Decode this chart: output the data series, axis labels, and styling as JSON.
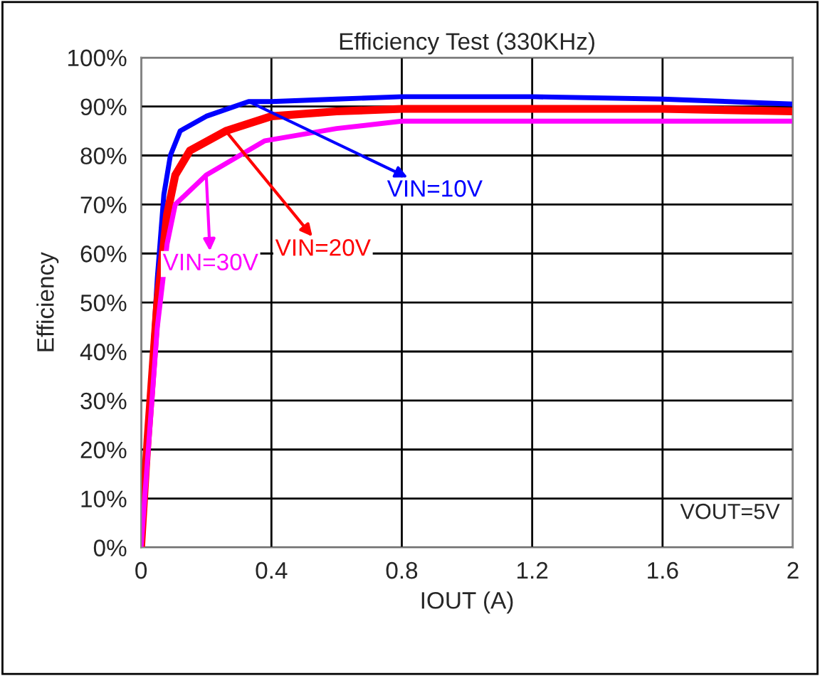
{
  "chart_data": {
    "type": "line",
    "title": "Efficiency Test (330KHz)",
    "xlabel": "IOUT (A)",
    "ylabel": "Efficiency",
    "xlim": [
      0,
      2
    ],
    "xticks": [
      0,
      0.4,
      0.8,
      1.2,
      1.6,
      2
    ],
    "ylim": [
      0,
      100
    ],
    "yticks": [
      {
        "value": 0,
        "label": "0%"
      },
      {
        "value": 10,
        "label": "10%"
      },
      {
        "value": 20,
        "label": "20%"
      },
      {
        "value": 30,
        "label": "30%"
      },
      {
        "value": 40,
        "label": "40%"
      },
      {
        "value": 50,
        "label": "50%"
      },
      {
        "value": 60,
        "label": "60%"
      },
      {
        "value": 70,
        "label": "70%"
      },
      {
        "value": 80,
        "label": "80%"
      },
      {
        "value": 90,
        "label": "90%"
      },
      {
        "value": 100,
        "label": "100%"
      }
    ],
    "grid": true,
    "marker": "none",
    "line_style": "solid",
    "series": [
      {
        "color": "#0000ff",
        "x": [
          0,
          0.05,
          0.07,
          0.09,
          0.12,
          0.2,
          0.33,
          0.4,
          0.6,
          0.8,
          1.2,
          1.6,
          2
        ],
        "values": [
          0,
          55,
          72,
          80,
          85,
          88,
          91,
          91,
          91.5,
          92,
          92,
          91.5,
          90.5
        ]
      },
      {
        "color": "#ff0000",
        "x": [
          0,
          0.02,
          0.05,
          0.08,
          0.105,
          0.15,
          0.26,
          0.4,
          0.6,
          0.8,
          1.2,
          1.6,
          2
        ],
        "values": [
          0,
          22,
          50,
          68,
          76,
          81,
          85,
          88,
          89,
          89.5,
          89.5,
          89.5,
          89
        ]
      },
      {
        "color": "#ff00ff",
        "x": [
          0,
          0.02,
          0.05,
          0.08,
          0.105,
          0.2,
          0.38,
          0.6,
          0.8,
          1.2,
          1.6,
          2
        ],
        "values": [
          0,
          18,
          45,
          62,
          70,
          76,
          83,
          85.5,
          87,
          87,
          87,
          87
        ]
      }
    ],
    "annotations": [
      {
        "text": "VIN=10V",
        "x": 0.33,
        "y": 91
      },
      {
        "text": "VIN=20V",
        "x": 0.26,
        "y": 85
      },
      {
        "text": "VIN=30V",
        "x": 0.2,
        "y": 76
      },
      "VOUT=5V"
    ]
  }
}
